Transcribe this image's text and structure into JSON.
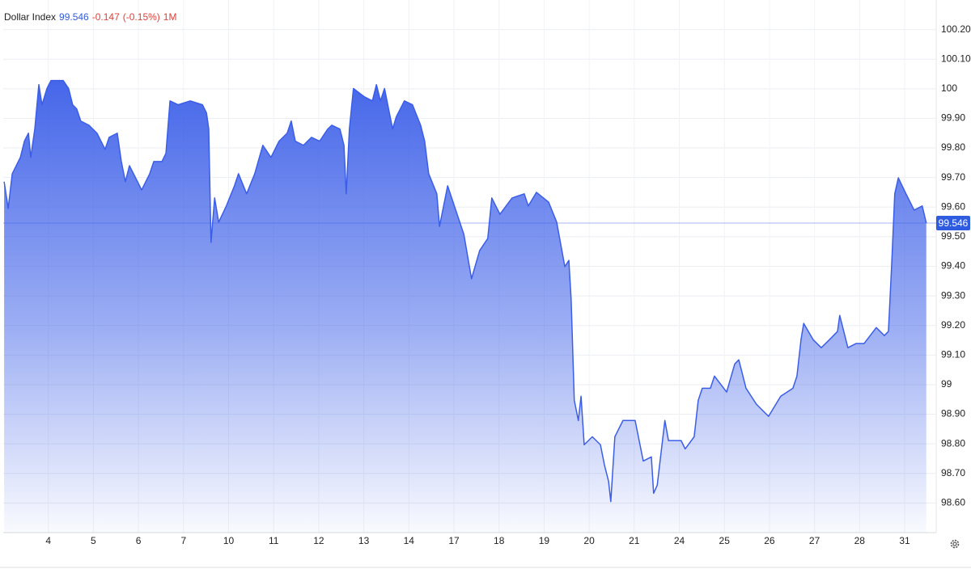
{
  "chart_data": {
    "type": "area",
    "title": "Dollar Index",
    "last_value": 99.546,
    "change": -0.147,
    "change_percent": {
      "value": -0.15,
      "label": "(-0.15%)"
    },
    "period": "1M",
    "color": "#3b5ee8",
    "value_color": "#2f5be0",
    "change_color": "#e0403a",
    "grid": true,
    "y_axis_side": "right",
    "xlim": [
      -1,
      19.7
    ],
    "ylim": [
      98.5,
      100.3
    ],
    "xticks": [
      {
        "value": 0,
        "label": "4"
      },
      {
        "value": 1,
        "label": "5"
      },
      {
        "value": 2,
        "label": "6"
      },
      {
        "value": 3,
        "label": "7"
      },
      {
        "value": 4,
        "label": "10"
      },
      {
        "value": 5,
        "label": "11"
      },
      {
        "value": 6,
        "label": "12"
      },
      {
        "value": 7,
        "label": "13"
      },
      {
        "value": 8,
        "label": "14"
      },
      {
        "value": 9,
        "label": "17"
      },
      {
        "value": 10,
        "label": "18"
      },
      {
        "value": 11,
        "label": "19"
      },
      {
        "value": 12,
        "label": "20"
      },
      {
        "value": 13,
        "label": "21"
      },
      {
        "value": 14,
        "label": "24"
      },
      {
        "value": 15,
        "label": "25"
      },
      {
        "value": 16,
        "label": "26"
      },
      {
        "value": 17,
        "label": "27"
      },
      {
        "value": 18,
        "label": "28"
      },
      {
        "value": 19,
        "label": "31"
      }
    ],
    "yticks": [
      {
        "value": 100.2,
        "label": "100.20"
      },
      {
        "value": 100.1,
        "label": "100.10"
      },
      100,
      {
        "value": 99.9,
        "label": "99.90"
      },
      {
        "value": 99.8,
        "label": "99.80"
      },
      {
        "value": 99.7,
        "label": "99.70"
      },
      {
        "value": 99.6,
        "label": "99.60"
      },
      {
        "value": 99.5,
        "label": "99.50"
      },
      {
        "value": 99.4,
        "label": "99.40"
      },
      {
        "value": 99.3,
        "label": "99.30"
      },
      {
        "value": 99.2,
        "label": "99.20"
      },
      {
        "value": 99.1,
        "label": "99.10"
      },
      99,
      {
        "value": 98.9,
        "label": "98.90"
      },
      {
        "value": 98.8,
        "label": "98.80"
      },
      {
        "value": 98.7,
        "label": "98.70"
      },
      {
        "value": 98.6,
        "label": "98.60"
      }
    ],
    "x": [
      -0.98,
      -0.89,
      -0.8,
      -0.62,
      -0.53,
      -0.44,
      -0.39,
      -0.3,
      -0.21,
      -0.14,
      -0.03,
      0.06,
      0.18,
      0.33,
      0.45,
      0.54,
      0.63,
      0.72,
      0.9,
      1.08,
      1.26,
      1.35,
      1.53,
      1.62,
      1.71,
      1.8,
      1.98,
      2.07,
      2.25,
      2.34,
      2.52,
      2.61,
      2.7,
      2.88,
      3.15,
      3.42,
      3.51,
      3.56,
      3.61,
      3.69,
      3.78,
      3.95,
      4.13,
      4.22,
      4.4,
      4.58,
      4.76,
      4.94,
      5.12,
      5.3,
      5.39,
      5.48,
      5.66,
      5.84,
      6.02,
      6.2,
      6.29,
      6.47,
      6.56,
      6.61,
      6.68,
      6.77,
      7.01,
      7.19,
      7.28,
      7.37,
      7.46,
      7.55,
      7.64,
      7.72,
      7.9,
      8.08,
      8.26,
      8.35,
      8.44,
      8.62,
      8.68,
      8.86,
      9.04,
      9.22,
      9.39,
      9.57,
      9.75,
      9.84,
      10.02,
      10.29,
      10.56,
      10.65,
      10.83,
      11.1,
      11.28,
      11.46,
      11.55,
      11.6,
      11.67,
      11.76,
      11.82,
      11.89,
      12.07,
      12.25,
      12.34,
      12.43,
      12.48,
      12.57,
      12.75,
      13.02,
      13.2,
      13.38,
      13.43,
      13.51,
      13.68,
      13.76,
      14.04,
      14.13,
      14.33,
      14.42,
      14.51,
      14.69,
      14.78,
      15.05,
      15.23,
      15.32,
      15.48,
      15.71,
      15.98,
      16.25,
      16.52,
      16.61,
      16.7,
      16.76,
      16.97,
      17.15,
      17.33,
      17.51,
      17.56,
      17.74,
      17.92,
      18.1,
      18.37,
      18.55,
      18.64,
      18.71,
      18.78,
      18.86,
      19.03,
      19.21,
      19.39,
      19.48
    ],
    "values": [
      99.686,
      99.596,
      99.713,
      99.768,
      99.823,
      99.85,
      99.768,
      99.864,
      100.014,
      99.946,
      100.001,
      100.028,
      100.028,
      100.028,
      100.001,
      99.946,
      99.932,
      99.891,
      99.877,
      99.85,
      99.795,
      99.836,
      99.85,
      99.754,
      99.686,
      99.74,
      99.686,
      99.658,
      99.713,
      99.754,
      99.754,
      99.782,
      99.959,
      99.946,
      99.959,
      99.946,
      99.918,
      99.864,
      99.481,
      99.631,
      99.549,
      99.604,
      99.672,
      99.713,
      99.645,
      99.713,
      99.809,
      99.768,
      99.823,
      99.85,
      99.891,
      99.823,
      99.809,
      99.836,
      99.823,
      99.864,
      99.877,
      99.864,
      99.809,
      99.645,
      99.864,
      100.001,
      99.973,
      99.959,
      100.014,
      99.959,
      100.001,
      99.932,
      99.864,
      99.905,
      99.959,
      99.946,
      99.877,
      99.823,
      99.713,
      99.645,
      99.535,
      99.672,
      99.59,
      99.508,
      99.358,
      99.453,
      99.494,
      99.631,
      99.576,
      99.631,
      99.645,
      99.604,
      99.65,
      99.617,
      99.549,
      99.399,
      99.42,
      99.289,
      98.947,
      98.879,
      98.961,
      98.797,
      98.824,
      98.797,
      98.728,
      98.674,
      98.605,
      98.824,
      98.879,
      98.879,
      98.742,
      98.756,
      98.633,
      98.66,
      98.879,
      98.811,
      98.811,
      98.783,
      98.824,
      98.947,
      98.988,
      98.988,
      99.029,
      98.975,
      99.07,
      99.084,
      98.988,
      98.934,
      98.893,
      98.961,
      98.988,
      99.029,
      99.152,
      99.207,
      99.152,
      99.125,
      99.152,
      99.18,
      99.234,
      99.125,
      99.139,
      99.139,
      99.193,
      99.166,
      99.18,
      99.399,
      99.645,
      99.699,
      99.645,
      99.59,
      99.604,
      99.546
    ]
  }
}
